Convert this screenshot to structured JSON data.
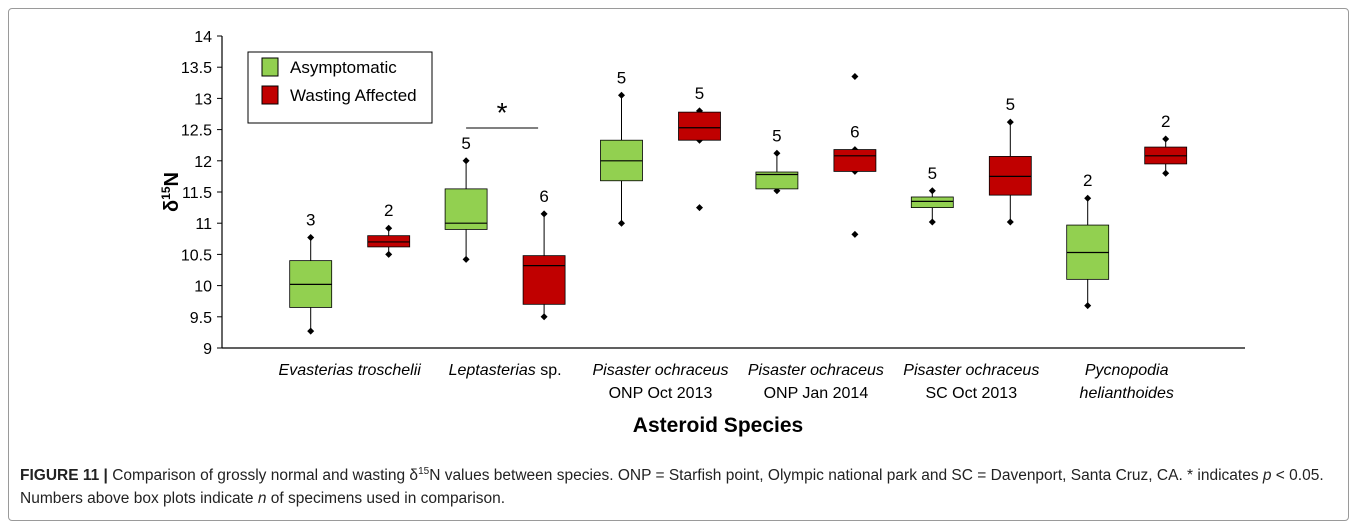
{
  "chart_data": {
    "type": "box",
    "ylabel": {
      "symbol": "δ",
      "sup": "15",
      "element": "N"
    },
    "xlabel": "Asteroid Species",
    "categories": [
      {
        "genus": "Evasterias troschelii"
      },
      {
        "genus": "Leptasterias",
        "suffix": " sp."
      },
      {
        "genus": "Pisaster ochraceus",
        "site": "ONP Oct 2013"
      },
      {
        "genus": "Pisaster ochraceus",
        "site": "ONP Jan 2014"
      },
      {
        "genus": "Pisaster ochraceus",
        "site": "SC Oct 2013"
      },
      {
        "genus": "Pycnopodia",
        "site": "helianthoides"
      }
    ],
    "ylim": [
      9,
      14
    ],
    "yticks": [
      9,
      9.5,
      10,
      10.5,
      11,
      11.5,
      12,
      12.5,
      13,
      13.5,
      14
    ],
    "legend": "top-left",
    "annotation": "*",
    "series": [
      {
        "name": "Asymptomatic",
        "color": "#92d050",
        "boxes": [
          {
            "low": 9.27,
            "q1": 9.65,
            "median": 10.02,
            "q3": 10.4,
            "high": 10.77,
            "n": 3
          },
          {
            "low": 10.42,
            "q1": 10.9,
            "median": 11.0,
            "q3": 11.55,
            "high": 12.0,
            "n": 5
          },
          {
            "low": 11.0,
            "q1": 11.68,
            "median": 12.0,
            "q3": 12.33,
            "high": 13.05,
            "n": 5
          },
          {
            "low": 11.52,
            "q1": 11.55,
            "median": 11.78,
            "q3": 11.82,
            "high": 12.12,
            "n": 5
          },
          {
            "low": 11.02,
            "q1": 11.25,
            "median": 11.35,
            "q3": 11.42,
            "high": 11.52,
            "n": 5
          },
          {
            "low": 9.68,
            "q1": 10.1,
            "median": 10.53,
            "q3": 10.97,
            "high": 11.4,
            "n": 2
          }
        ]
      },
      {
        "name": "Wasting Affected",
        "color": "#c00000",
        "boxes": [
          {
            "low": 10.5,
            "q1": 10.62,
            "median": 10.7,
            "q3": 10.8,
            "high": 10.92,
            "n": 2
          },
          {
            "low": 9.5,
            "q1": 9.7,
            "median": 10.32,
            "q3": 10.48,
            "high": 11.15,
            "n": 6
          },
          {
            "low": 12.33,
            "q1": 12.33,
            "median": 12.53,
            "q3": 12.78,
            "high": 12.8,
            "outliers": [
              11.25
            ],
            "n": 5
          },
          {
            "low": 11.83,
            "q1": 11.83,
            "median": 12.08,
            "q3": 12.18,
            "high": 12.18,
            "outliers": [
              13.35,
              10.82
            ],
            "n": 6
          },
          {
            "low": 11.02,
            "q1": 11.45,
            "median": 11.75,
            "q3": 12.07,
            "high": 12.62,
            "n": 5
          },
          {
            "low": 11.8,
            "q1": 11.95,
            "median": 12.08,
            "q3": 12.22,
            "high": 12.35,
            "n": 2
          }
        ]
      }
    ],
    "caption": [
      {
        "text": "FIGURE 11 | ",
        "style": "bold"
      },
      {
        "text": "Comparison of grossly normal and wasting δ",
        "style": "plain"
      },
      {
        "text": "15",
        "style": "sup"
      },
      {
        "text": "N values between species. ONP = Starfish point, Olympic national park and SC = Davenport, Santa Cruz, CA. * indicates ",
        "style": "plain"
      },
      {
        "text": "p",
        "style": "italic"
      },
      {
        "text": " < 0.05. Numbers above box plots indicate ",
        "style": "plain"
      },
      {
        "text": "n",
        "style": "italic"
      },
      {
        "text": " of specimens used in comparison.",
        "style": "plain"
      }
    ]
  }
}
